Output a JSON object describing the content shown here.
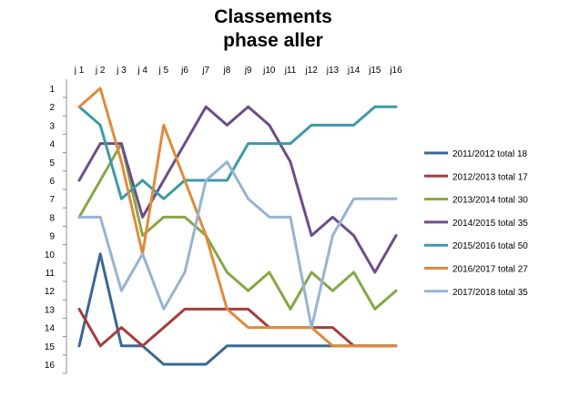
{
  "chart_data": {
    "type": "line",
    "title_line1": "Classements",
    "title_line2": "phase aller",
    "categories": [
      "j 1",
      "j 2",
      "j 3",
      "j 4",
      "j 5",
      "j6",
      "j7",
      "j8",
      "j9",
      "j10",
      "j11",
      "j12",
      "j13",
      "j14",
      "j15",
      "j16"
    ],
    "y_ticks": [
      "1",
      "2",
      "3",
      "4",
      "5",
      "6",
      "7",
      "8",
      "9",
      "10",
      "11",
      "12",
      "13",
      "14",
      "15",
      "16"
    ],
    "ylim": [
      1,
      16
    ],
    "y_reversed": true,
    "grid": false,
    "legend_position": "right",
    "series": [
      {
        "name": "2011/2012 total 18",
        "color": "#3a6893",
        "values": [
          15,
          10,
          15,
          15,
          16,
          16,
          16,
          15,
          15,
          15,
          15,
          15,
          15,
          15,
          15,
          15
        ]
      },
      {
        "name": "2012/2013 total 17",
        "color": "#a33d3b",
        "values": [
          13,
          15,
          14,
          15,
          14,
          13,
          13,
          13,
          13,
          14,
          14,
          14,
          14,
          15,
          15,
          15
        ]
      },
      {
        "name": "2013/2014 total 30",
        "color": "#86a746",
        "values": [
          8,
          6,
          4,
          9,
          8,
          8,
          9,
          11,
          12,
          11,
          13,
          11,
          12,
          11,
          13,
          12
        ]
      },
      {
        "name": "2014/2015 total 35",
        "color": "#6b4e89",
        "values": [
          6,
          4,
          4,
          8,
          6,
          4,
          2,
          3,
          2,
          3,
          5,
          9,
          8,
          9,
          11,
          9
        ]
      },
      {
        "name": "2015/2016 total 50",
        "color": "#3e9aa8",
        "values": [
          2,
          3,
          7,
          6,
          7,
          6,
          6,
          6,
          4,
          4,
          4,
          3,
          3,
          3,
          2,
          2
        ]
      },
      {
        "name": "2016/2017 total 27",
        "color": "#e08a3c",
        "values": [
          2,
          1,
          5,
          10,
          3,
          6,
          9,
          13,
          14,
          14,
          14,
          14,
          15,
          15,
          15,
          15
        ]
      },
      {
        "name": "2017/2018 total 35",
        "color": "#97b3d3",
        "values": [
          8,
          8,
          12,
          10,
          13,
          11,
          6,
          5,
          7,
          8,
          8,
          14,
          9,
          7,
          7,
          7
        ]
      }
    ]
  }
}
